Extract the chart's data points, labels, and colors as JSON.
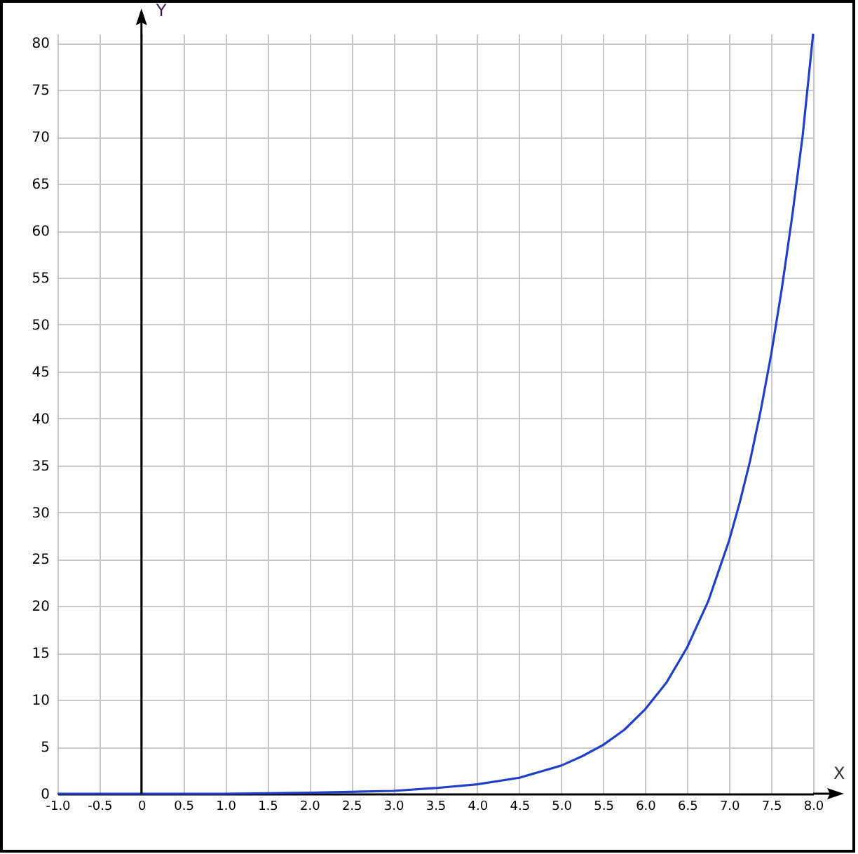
{
  "chart_data": {
    "type": "line",
    "xlabel": "X",
    "ylabel": "Y",
    "x": [
      -1,
      0,
      1,
      2,
      3,
      3.5,
      4,
      4.5,
      5,
      5.25,
      5.5,
      5.75,
      6,
      6.25,
      6.5,
      6.75,
      7,
      7.125,
      7.25,
      7.375,
      7.5,
      7.625,
      7.75,
      7.875,
      8
    ],
    "series": [
      {
        "color": "#2040c8",
        "values": [
          0,
          0,
          0,
          0.1,
          0.3,
          0.6,
          1,
          1.7,
          3,
          4,
          5.2,
          6.8,
          9,
          11.8,
          15.6,
          20.5,
          27,
          31,
          35.5,
          40.8,
          46.8,
          53.7,
          61.5,
          70.1,
          81
        ]
      }
    ],
    "xlim": [
      -1,
      8
    ],
    "ylim": [
      0,
      81
    ],
    "xticks": [
      {
        "value": -1,
        "label": "-1.0"
      },
      -0.5,
      0,
      0.5,
      {
        "value": 1,
        "label": "1.0"
      },
      1.5,
      {
        "value": 2,
        "label": "2.0"
      },
      2.5,
      {
        "value": 3,
        "label": "3.0"
      },
      3.5,
      {
        "value": 4,
        "label": "4.0"
      },
      4.5,
      {
        "value": 5,
        "label": "5.0"
      },
      5.5,
      {
        "value": 6,
        "label": "6.0"
      },
      6.5,
      {
        "value": 7,
        "label": "7.0"
      },
      7.5,
      {
        "value": 8,
        "label": "8.0"
      }
    ],
    "yticks": [
      0,
      5,
      10,
      15,
      20,
      25,
      30,
      35,
      40,
      45,
      50,
      55,
      60,
      65,
      70,
      75,
      80
    ],
    "grid": true,
    "marker": "none",
    "line_style": "solid"
  }
}
